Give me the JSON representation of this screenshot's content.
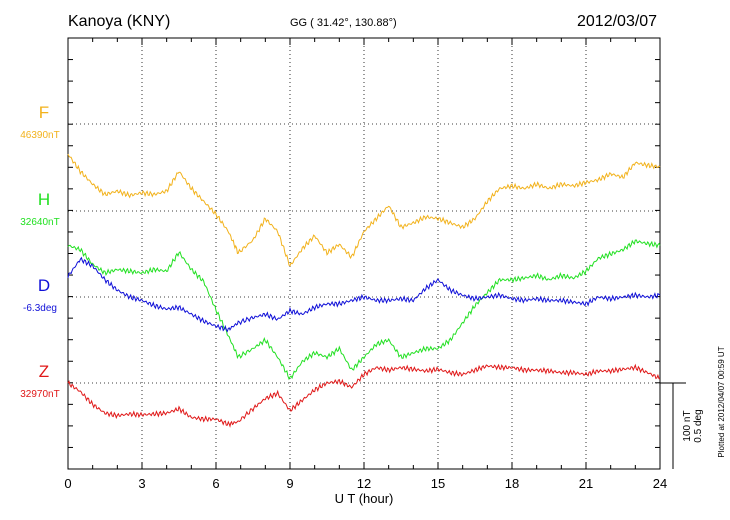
{
  "header": {
    "station": "Kanoya (KNY)",
    "coords": "GG ( 31.42°, 130.88°)",
    "date": "2012/03/07"
  },
  "chart_data": {
    "type": "line",
    "title": "Kanoya (KNY)",
    "xlabel": "U T (hour)",
    "xlim": [
      0,
      24
    ],
    "xticks": [
      "0",
      "3",
      "6",
      "9",
      "12",
      "15",
      "18",
      "21",
      "24"
    ],
    "grid": true,
    "series": [
      {
        "name": "F",
        "baseline": "46390nT",
        "color": "#f2b21c",
        "x": [
          0,
          0.5,
          1,
          1.5,
          2,
          2.5,
          3,
          3.5,
          4,
          4.5,
          5,
          5.5,
          6,
          6.5,
          6.9,
          7.5,
          8,
          8.5,
          9,
          9.5,
          10,
          10.5,
          11,
          11.5,
          12,
          12.5,
          13,
          13.5,
          14,
          14.5,
          15,
          15.5,
          16,
          16.5,
          17,
          17.5,
          18,
          18.5,
          19,
          19.5,
          20,
          20.5,
          21,
          21.5,
          22,
          22.5,
          23,
          23.5,
          24
        ],
        "values": [
          -35,
          -55,
          -70,
          -82,
          -78,
          -83,
          -80,
          -82,
          -78,
          -55,
          -75,
          -90,
          -105,
          -125,
          -150,
          -135,
          -110,
          -125,
          -165,
          -145,
          -130,
          -150,
          -140,
          -155,
          -125,
          -110,
          -95,
          -120,
          -115,
          -108,
          -110,
          -115,
          -120,
          -110,
          -90,
          -75,
          -72,
          -75,
          -70,
          -75,
          -70,
          -72,
          -68,
          -65,
          -58,
          -62,
          -45,
          -48,
          -50
        ]
      },
      {
        "name": "H",
        "baseline": "32640nT",
        "color": "#22e022",
        "x": [
          0,
          0.5,
          1,
          1.5,
          2,
          2.5,
          3,
          3.5,
          4,
          4.5,
          5,
          5.5,
          6,
          6.5,
          6.9,
          7.5,
          8,
          8.5,
          9,
          9.5,
          10,
          10.5,
          11,
          11.5,
          12,
          12.5,
          13,
          13.5,
          14,
          14.5,
          15,
          15.5,
          16,
          16.5,
          17,
          17.5,
          18,
          18.5,
          19,
          19.5,
          20,
          20.5,
          21,
          21.5,
          22,
          22.5,
          23,
          23.5,
          24
        ],
        "values": [
          -40,
          -45,
          -62,
          -72,
          -68,
          -70,
          -72,
          -68,
          -70,
          -48,
          -68,
          -82,
          -115,
          -145,
          -170,
          -160,
          -150,
          -170,
          -195,
          -175,
          -165,
          -170,
          -160,
          -185,
          -170,
          -155,
          -150,
          -170,
          -165,
          -160,
          -160,
          -150,
          -130,
          -110,
          -95,
          -80,
          -80,
          -78,
          -75,
          -80,
          -75,
          -78,
          -70,
          -55,
          -50,
          -45,
          -35,
          -38,
          -40
        ]
      },
      {
        "name": "D",
        "baseline": "-6.3deg",
        "color": "#1010d8",
        "x": [
          0,
          0.5,
          1,
          1.5,
          2,
          2.5,
          3,
          3.5,
          4,
          4.5,
          5,
          5.5,
          6,
          6.5,
          6.9,
          7.5,
          8,
          8.5,
          9,
          9.5,
          10,
          10.5,
          11,
          11.5,
          12,
          12.5,
          13,
          13.5,
          14,
          14.5,
          15,
          15.5,
          16,
          16.5,
          17,
          17.5,
          18,
          18.5,
          19,
          19.5,
          20,
          20.5,
          21,
          21.5,
          22,
          22.5,
          23,
          23.5,
          24
        ],
        "values": [
          0.12,
          0.22,
          0.18,
          0.1,
          0.04,
          0,
          -0.02,
          -0.05,
          -0.07,
          -0.06,
          -0.1,
          -0.14,
          -0.17,
          -0.19,
          -0.15,
          -0.12,
          -0.1,
          -0.13,
          -0.08,
          -0.1,
          -0.06,
          -0.04,
          -0.04,
          -0.02,
          0,
          -0.02,
          -0.02,
          -0.01,
          -0.02,
          0.05,
          0.1,
          0.04,
          0.01,
          -0.01,
          0,
          0.01,
          -0.01,
          -0.02,
          -0.01,
          -0.02,
          -0.02,
          -0.03,
          -0.04,
          0,
          -0.01,
          0,
          0.01,
          0,
          0.01
        ]
      },
      {
        "name": "Z",
        "baseline": "32970nT",
        "color": "#e01818",
        "x": [
          0,
          0.5,
          1,
          1.5,
          2,
          2.5,
          3,
          3.5,
          4,
          4.5,
          5,
          5.5,
          6,
          6.5,
          6.9,
          7.5,
          8,
          8.5,
          9,
          9.5,
          10,
          10.5,
          11,
          11.5,
          12,
          12.5,
          13,
          13.5,
          14,
          14.5,
          15,
          15.5,
          16,
          16.5,
          17,
          17.5,
          18,
          18.5,
          19,
          19.5,
          20,
          20.5,
          21,
          21.5,
          22,
          22.5,
          23,
          23.5,
          24
        ],
        "values": [
          0,
          -10,
          -25,
          -35,
          -38,
          -36,
          -37,
          -36,
          -35,
          -30,
          -40,
          -42,
          -42,
          -48,
          -45,
          -30,
          -18,
          -12,
          -32,
          -20,
          -8,
          0,
          2,
          -5,
          10,
          18,
          15,
          18,
          16,
          14,
          16,
          12,
          10,
          15,
          20,
          18,
          18,
          15,
          15,
          14,
          12,
          12,
          10,
          14,
          14,
          16,
          18,
          12,
          5
        ]
      }
    ],
    "scale_bar": {
      "lines": [
        "100 nT",
        "0.5 deg"
      ]
    },
    "footer_note": "Plotted at 2012/04/07 00:59 UT"
  }
}
